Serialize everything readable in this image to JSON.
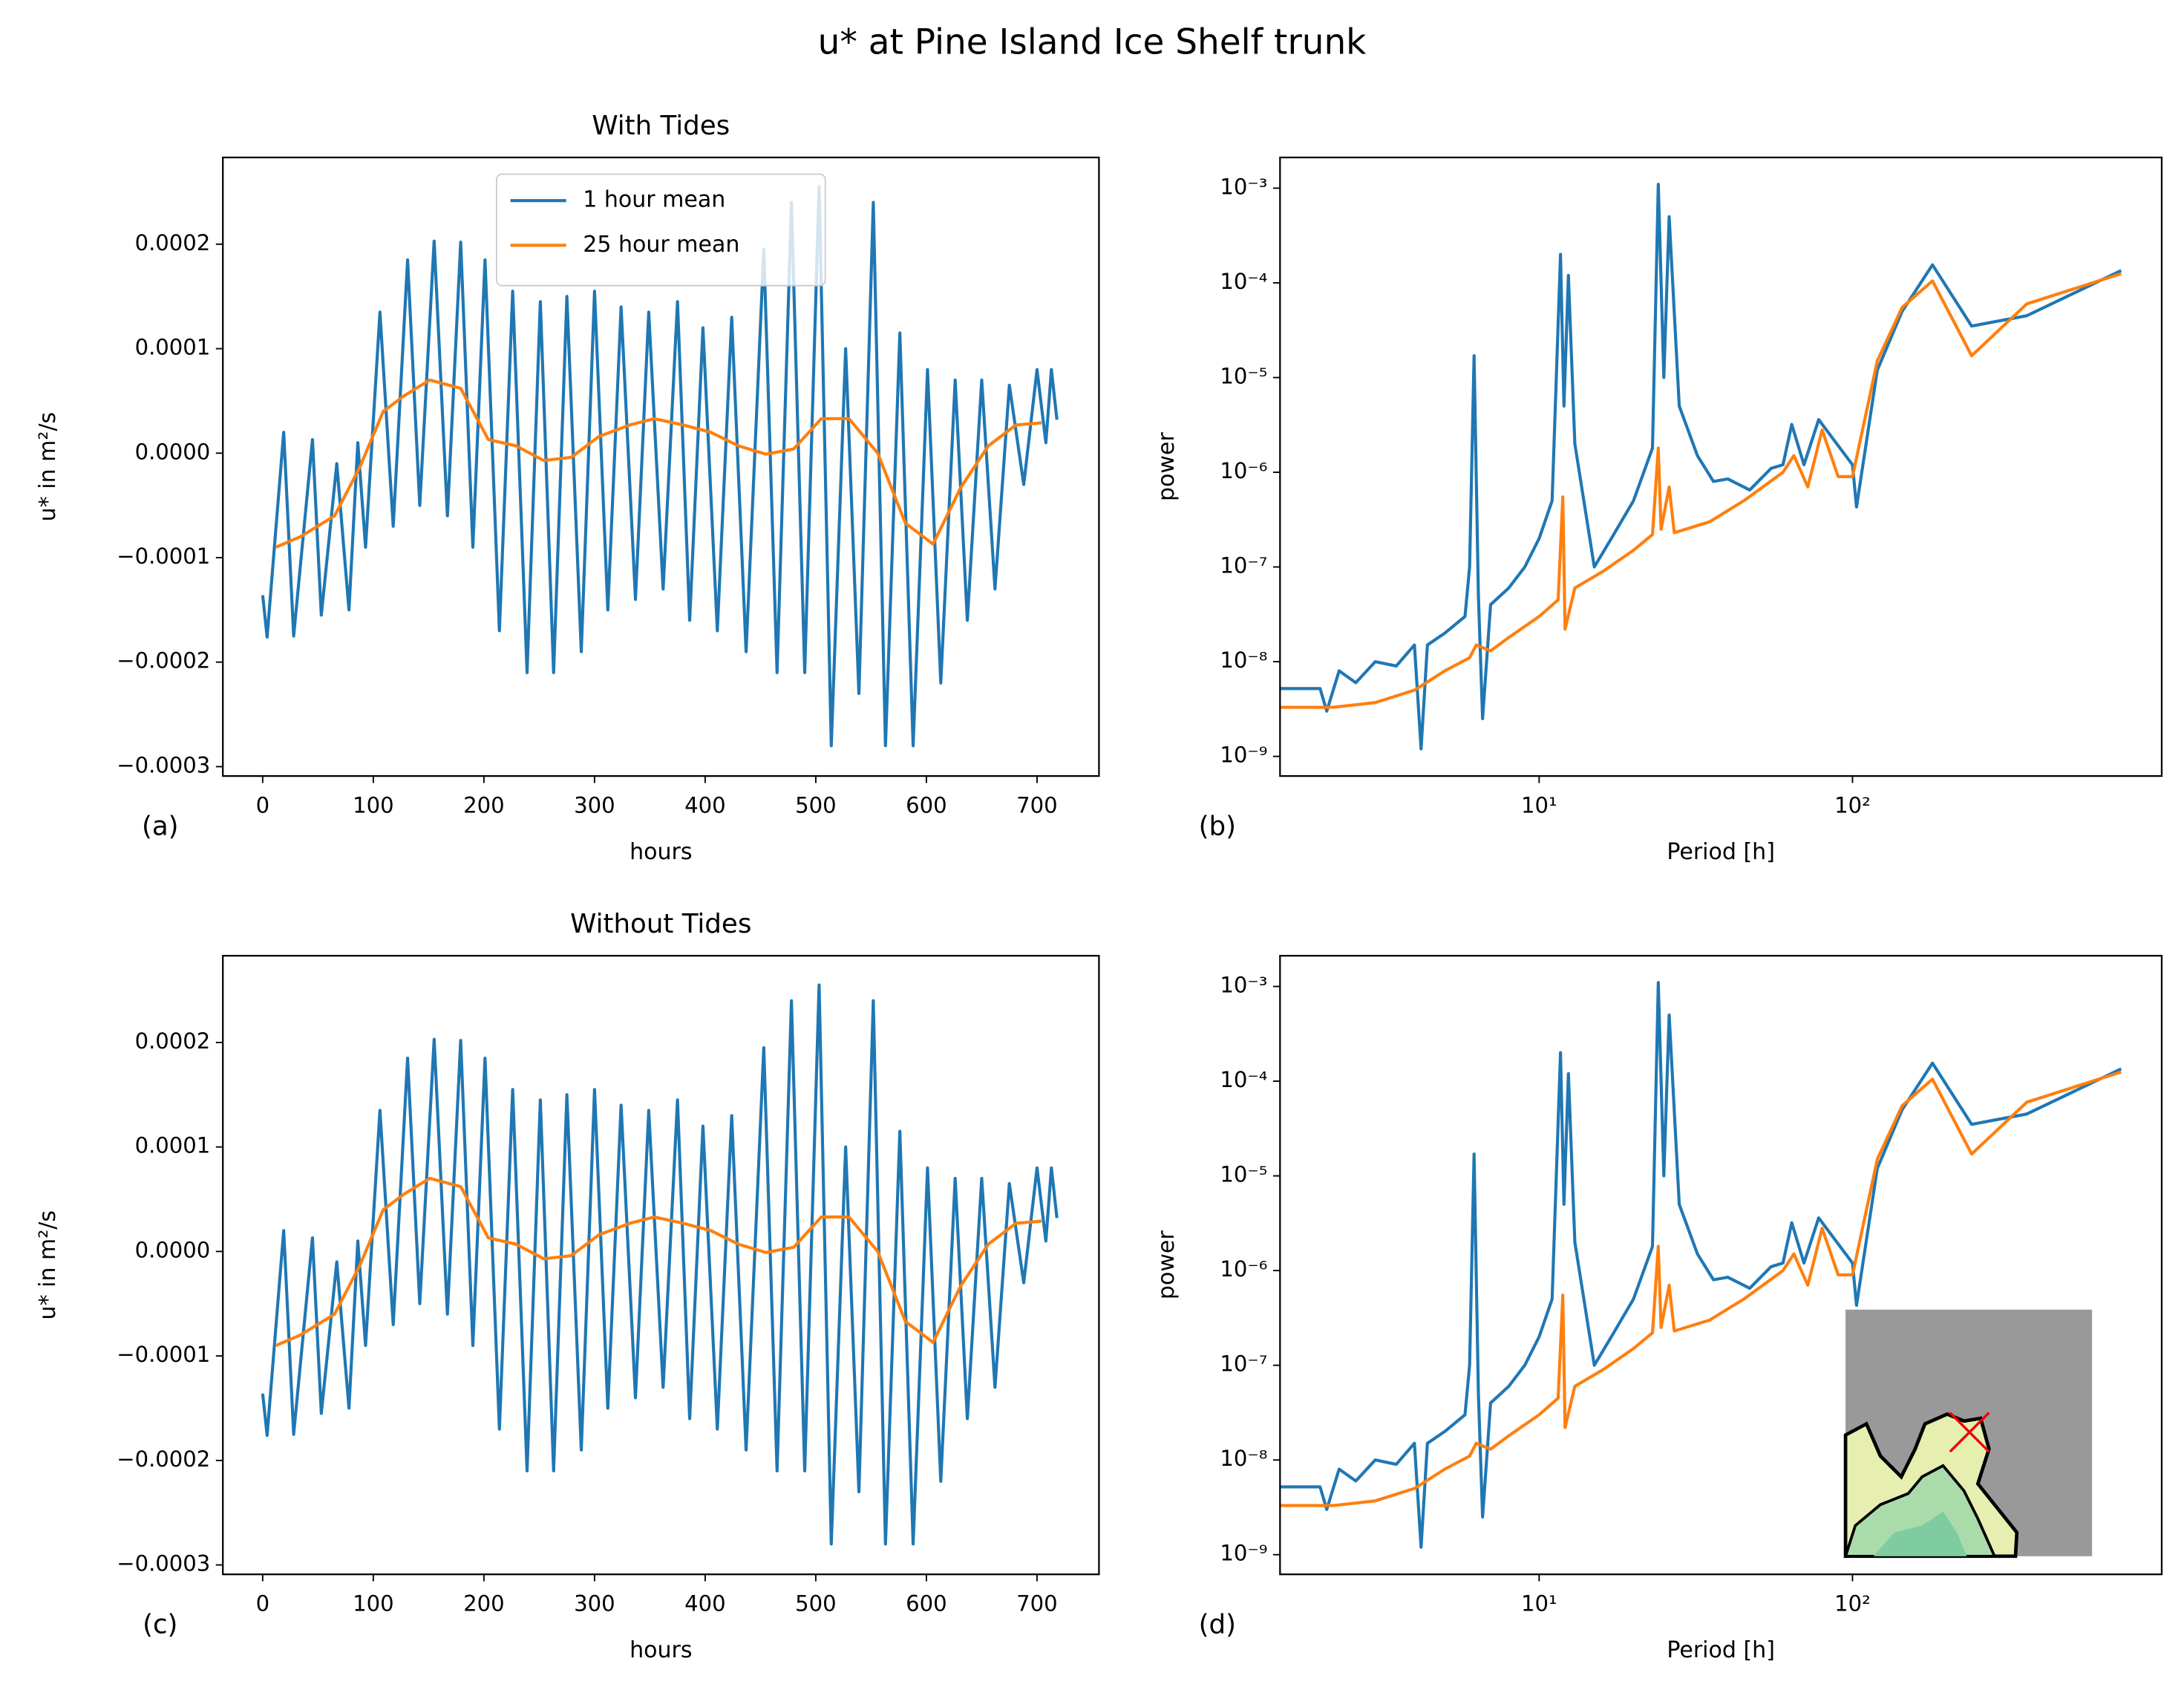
{
  "title": "u* at Pine Island Ice Shelf trunk",
  "chart_data": [
    {
      "type": "line",
      "title": "With Tides",
      "panel_label": "(a)",
      "xlabel": "hours",
      "ylabel": "u* in m²/s",
      "xlim": [
        -36,
        756
      ],
      "ylim": [
        -0.000309,
        0.000283
      ],
      "xticks": [
        0,
        100,
        200,
        300,
        400,
        500,
        600,
        700
      ],
      "yticks": [
        {
          "value": -0.0003,
          "label": "−0.0003"
        },
        {
          "value": -0.0002,
          "label": "−0.0002"
        },
        {
          "value": -0.0001,
          "label": "−0.0001"
        },
        {
          "value": 0,
          "label": "0.0000"
        },
        {
          "value": 0.0001,
          "label": "0.0001"
        },
        {
          "value": 0.0002,
          "label": "0.0002"
        }
      ],
      "legend": "upper center",
      "series": [
        {
          "name": "1 hour mean",
          "color": "#1f77b4",
          "x": [
            0,
            4,
            19,
            28,
            45,
            53,
            67,
            78,
            86,
            93,
            106,
            118,
            131,
            142,
            155,
            167,
            179,
            190,
            201,
            214,
            226,
            239,
            251,
            263,
            275,
            288,
            300,
            312,
            324,
            337,
            349,
            362,
            375,
            386,
            398,
            411,
            424,
            437,
            453,
            465,
            478,
            490,
            503,
            514,
            527,
            539,
            552,
            563,
            576,
            588,
            601,
            613,
            626,
            637,
            650,
            662,
            675,
            688,
            700,
            708,
            713,
            718
          ],
          "values": [
            -0.000136,
            -0.000176,
            2e-05,
            -0.000175,
            1.3e-05,
            -0.000155,
            -1e-05,
            -0.00015,
            1e-05,
            -9e-05,
            0.000135,
            -7e-05,
            0.000185,
            -5e-05,
            0.000203,
            -6e-05,
            0.000202,
            -9e-05,
            0.000185,
            -0.00017,
            0.000155,
            -0.00021,
            0.000145,
            -0.00021,
            0.00015,
            -0.00019,
            0.000155,
            -0.00015,
            0.00014,
            -0.00014,
            0.000135,
            -0.00013,
            0.000145,
            -0.00016,
            0.00012,
            -0.00017,
            0.00013,
            -0.00019,
            0.000195,
            -0.00021,
            0.00024,
            -0.00021,
            0.000255,
            -0.00028,
            0.0001,
            -0.00023,
            0.00024,
            -0.00028,
            0.000115,
            -0.00028,
            8e-05,
            -0.00022,
            7e-05,
            -0.00016,
            7e-05,
            -0.00013,
            6.5e-05,
            -3e-05,
            8e-05,
            1e-05,
            8e-05,
            3.2e-05
          ]
        },
        {
          "name": "25 hour mean",
          "color": "#ff7f0e",
          "x": [
            12,
            34,
            65,
            88,
            109,
            128,
            151,
            179,
            204,
            229,
            254,
            279,
            304,
            332,
            354,
            380,
            405,
            430,
            455,
            480,
            505,
            530,
            556,
            581,
            606,
            631,
            656,
            681,
            704
          ],
          "values": [
            -9e-05,
            -8e-05,
            -6e-05,
            -1.3e-05,
            4e-05,
            5.5e-05,
            7e-05,
            6.2e-05,
            1.3e-05,
            7e-06,
            -7e-06,
            -4e-06,
            1.6e-05,
            2.7e-05,
            3.3e-05,
            2.7e-05,
            2e-05,
            7e-06,
            -1e-06,
            4e-06,
            3.3e-05,
            3.3e-05,
            0,
            -6.7e-05,
            -8.7e-05,
            -3.3e-05,
            7e-06,
            2.7e-05,
            2.9e-05
          ]
        }
      ]
    },
    {
      "type": "line",
      "panel_label": "(b)",
      "xlabel": "Period [h]",
      "ylabel": "power",
      "xscale": "log",
      "yscale": "log",
      "xlim": [
        1.49,
        970
      ],
      "ylim": [
        6.2e-10,
        0.00211
      ],
      "xticks": [
        {
          "value": 10,
          "label": "10¹"
        },
        {
          "value": 100,
          "label": "10²"
        }
      ],
      "yticks": [
        {
          "value": 1e-09,
          "label": "10⁻⁹"
        },
        {
          "value": 1e-08,
          "label": "10⁻⁸"
        },
        {
          "value": 1e-07,
          "label": "10⁻⁷"
        },
        {
          "value": 1e-06,
          "label": "10⁻⁶"
        },
        {
          "value": 1e-05,
          "label": "10⁻⁵"
        },
        {
          "value": 0.0001,
          "label": "10⁻⁴"
        },
        {
          "value": 0.001,
          "label": "10⁻³"
        }
      ],
      "series": [
        {
          "name": "1 hour mean",
          "color": "#1f77b4",
          "x": [
            1.5,
            2.0,
            2.1,
            2.3,
            2.6,
            3.0,
            3.5,
            4.0,
            4.2,
            4.4,
            5.0,
            5.8,
            6.0,
            6.2,
            6.4,
            6.6,
            7.0,
            8.0,
            9.0,
            10,
            11,
            11.7,
            12.0,
            12.4,
            13,
            15,
            17,
            20,
            23,
            24,
            25,
            26,
            28,
            32,
            36,
            40,
            47,
            55,
            60,
            64,
            70,
            78,
            100,
            103,
            120,
            144,
            180,
            240,
            360,
            720
          ],
          "values": [
            5.2e-09,
            5.2e-09,
            3e-09,
            8e-09,
            6e-09,
            1e-08,
            9e-09,
            1.5e-08,
            1.2e-09,
            1.5e-08,
            2e-08,
            3e-08,
            1e-07,
            1.7e-05,
            5e-08,
            2.5e-09,
            4e-08,
            6e-08,
            1e-07,
            2e-07,
            5e-07,
            0.0002,
            5e-06,
            0.00012,
            2e-06,
            1e-07,
            2e-07,
            5e-07,
            1.8e-06,
            0.0011,
            1e-05,
            0.0005,
            5e-06,
            1.5e-06,
            8e-07,
            8.5e-07,
            6.5e-07,
            1.1e-06,
            1.2e-06,
            3.2e-06,
            1.2e-06,
            3.6e-06,
            1.2e-06,
            4.3e-07,
            1.2e-05,
            5e-05,
            0.000155,
            3.5e-05,
            4.5e-05,
            0.000135
          ]
        },
        {
          "name": "25 hour mean",
          "color": "#ff7f0e",
          "x": [
            1.5,
            2.2,
            3,
            4,
            5,
            6,
            6.3,
            7,
            8,
            10,
            11.5,
            11.9,
            12.1,
            13,
            16,
            20,
            23,
            24,
            24.5,
            26,
            27,
            35,
            45,
            60,
            65,
            72,
            80,
            90,
            100,
            120,
            144,
            180,
            240,
            360,
            720
          ],
          "values": [
            3.3e-09,
            3.3e-09,
            3.7e-09,
            5e-09,
            8e-09,
            1.1e-08,
            1.5e-08,
            1.3e-08,
            1.8e-08,
            3e-08,
            4.5e-08,
            5.5e-07,
            2.2e-08,
            6e-08,
            9e-08,
            1.5e-07,
            2.2e-07,
            1.8e-06,
            2.5e-07,
            7e-07,
            2.3e-07,
            3e-07,
            5e-07,
            1e-06,
            1.5e-06,
            7e-07,
            2.8e-06,
            9e-07,
            9e-07,
            1.5e-05,
            5.5e-05,
            0.000105,
            1.7e-05,
            6e-05,
            0.000125
          ]
        }
      ]
    },
    {
      "type": "line",
      "title": "Without Tides",
      "panel_label": "(c)",
      "xlabel": "hours",
      "ylabel": "u* in m²/s",
      "xlim": [
        -36,
        756
      ],
      "ylim": [
        -0.000309,
        0.000283
      ],
      "xticks": [
        0,
        100,
        200,
        300,
        400,
        500,
        600,
        700
      ],
      "yticks": [
        {
          "value": -0.0003,
          "label": "−0.0003"
        },
        {
          "value": -0.0002,
          "label": "−0.0002"
        },
        {
          "value": -0.0001,
          "label": "−0.0001"
        },
        {
          "value": 0,
          "label": "0.0000"
        },
        {
          "value": 0.0001,
          "label": "0.0001"
        },
        {
          "value": 0.0002,
          "label": "0.0002"
        }
      ],
      "series": [
        {
          "name": "1 hour mean",
          "color": "#1f77b4",
          "x": [
            0,
            4,
            19,
            28,
            45,
            53,
            67,
            78,
            86,
            93,
            106,
            118,
            131,
            142,
            155,
            167,
            179,
            190,
            201,
            214,
            226,
            239,
            251,
            263,
            275,
            288,
            300,
            312,
            324,
            337,
            349,
            362,
            375,
            386,
            398,
            411,
            424,
            437,
            453,
            465,
            478,
            490,
            503,
            514,
            527,
            539,
            552,
            563,
            576,
            588,
            601,
            613,
            626,
            637,
            650,
            662,
            675,
            688,
            700,
            708,
            713,
            718
          ],
          "values": [
            -0.000136,
            -0.000176,
            2e-05,
            -0.000175,
            1.3e-05,
            -0.000155,
            -1e-05,
            -0.00015,
            1e-05,
            -9e-05,
            0.000135,
            -7e-05,
            0.000185,
            -5e-05,
            0.000203,
            -6e-05,
            0.000202,
            -9e-05,
            0.000185,
            -0.00017,
            0.000155,
            -0.00021,
            0.000145,
            -0.00021,
            0.00015,
            -0.00019,
            0.000155,
            -0.00015,
            0.00014,
            -0.00014,
            0.000135,
            -0.00013,
            0.000145,
            -0.00016,
            0.00012,
            -0.00017,
            0.00013,
            -0.00019,
            0.000195,
            -0.00021,
            0.00024,
            -0.00021,
            0.000255,
            -0.00028,
            0.0001,
            -0.00023,
            0.00024,
            -0.00028,
            0.000115,
            -0.00028,
            8e-05,
            -0.00022,
            7e-05,
            -0.00016,
            7e-05,
            -0.00013,
            6.5e-05,
            -3e-05,
            8e-05,
            1e-05,
            8e-05,
            3.2e-05
          ]
        },
        {
          "name": "25 hour mean",
          "color": "#ff7f0e",
          "x": [
            12,
            34,
            65,
            88,
            109,
            128,
            151,
            179,
            204,
            229,
            254,
            279,
            304,
            332,
            354,
            380,
            405,
            430,
            455,
            480,
            505,
            530,
            556,
            581,
            606,
            631,
            656,
            681,
            704
          ],
          "values": [
            -9e-05,
            -8e-05,
            -6e-05,
            -1.3e-05,
            4e-05,
            5.5e-05,
            7e-05,
            6.2e-05,
            1.3e-05,
            7e-06,
            -7e-06,
            -4e-06,
            1.6e-05,
            2.7e-05,
            3.3e-05,
            2.7e-05,
            2e-05,
            7e-06,
            -1e-06,
            4e-06,
            3.3e-05,
            3.3e-05,
            0,
            -6.7e-05,
            -8.7e-05,
            -3.3e-05,
            7e-06,
            2.7e-05,
            2.9e-05
          ]
        }
      ]
    },
    {
      "type": "line",
      "panel_label": "(d)",
      "xlabel": "Period [h]",
      "ylabel": "power",
      "xscale": "log",
      "yscale": "log",
      "xlim": [
        1.49,
        970
      ],
      "ylim": [
        6.2e-10,
        0.00211
      ],
      "xticks": [
        {
          "value": 10,
          "label": "10¹"
        },
        {
          "value": 100,
          "label": "10²"
        }
      ],
      "yticks": [
        {
          "value": 1e-09,
          "label": "10⁻⁹"
        },
        {
          "value": 1e-08,
          "label": "10⁻⁸"
        },
        {
          "value": 1e-07,
          "label": "10⁻⁷"
        },
        {
          "value": 1e-06,
          "label": "10⁻⁶"
        },
        {
          "value": 1e-05,
          "label": "10⁻⁵"
        },
        {
          "value": 0.0001,
          "label": "10⁻⁴"
        },
        {
          "value": 0.001,
          "label": "10⁻³"
        }
      ],
      "series": [
        {
          "name": "1 hour mean",
          "color": "#1f77b4",
          "x": [
            1.5,
            2.0,
            2.1,
            2.3,
            2.6,
            3.0,
            3.5,
            4.0,
            4.2,
            4.4,
            5.0,
            5.8,
            6.0,
            6.2,
            6.4,
            6.6,
            7.0,
            8.0,
            9.0,
            10,
            11,
            11.7,
            12.0,
            12.4,
            13,
            15,
            17,
            20,
            23,
            24,
            25,
            26,
            28,
            32,
            36,
            40,
            47,
            55,
            60,
            64,
            70,
            78,
            100,
            103,
            120,
            144,
            180,
            240,
            360,
            720
          ],
          "values": [
            5.2e-09,
            5.2e-09,
            3e-09,
            8e-09,
            6e-09,
            1e-08,
            9e-09,
            1.5e-08,
            1.2e-09,
            1.5e-08,
            2e-08,
            3e-08,
            1e-07,
            1.7e-05,
            5e-08,
            2.5e-09,
            4e-08,
            6e-08,
            1e-07,
            2e-07,
            5e-07,
            0.0002,
            5e-06,
            0.00012,
            2e-06,
            1e-07,
            2e-07,
            5e-07,
            1.8e-06,
            0.0011,
            1e-05,
            0.0005,
            5e-06,
            1.5e-06,
            8e-07,
            8.5e-07,
            6.5e-07,
            1.1e-06,
            1.2e-06,
            3.2e-06,
            1.2e-06,
            3.6e-06,
            1.2e-06,
            4.3e-07,
            1.2e-05,
            5e-05,
            0.000155,
            3.5e-05,
            4.5e-05,
            0.000135
          ]
        },
        {
          "name": "25 hour mean",
          "color": "#ff7f0e",
          "x": [
            1.5,
            2.2,
            3,
            4,
            5,
            6,
            6.3,
            7,
            8,
            10,
            11.5,
            11.9,
            12.1,
            13,
            16,
            20,
            23,
            24,
            24.5,
            26,
            27,
            35,
            45,
            60,
            65,
            72,
            80,
            90,
            100,
            120,
            144,
            180,
            240,
            360,
            720
          ],
          "values": [
            3.3e-09,
            3.3e-09,
            3.7e-09,
            5e-09,
            8e-09,
            1.1e-08,
            1.5e-08,
            1.3e-08,
            1.8e-08,
            3e-08,
            4.5e-08,
            5.5e-07,
            2.2e-08,
            6e-08,
            9e-08,
            1.5e-07,
            2.2e-07,
            1.8e-06,
            2.5e-07,
            7e-07,
            2.3e-07,
            3e-07,
            5e-07,
            1e-06,
            1.5e-06,
            7e-07,
            2.8e-06,
            9e-07,
            9e-07,
            1.5e-05,
            5.5e-05,
            0.000105,
            1.7e-05,
            6e-05,
            0.000125
          ]
        }
      ]
    }
  ]
}
